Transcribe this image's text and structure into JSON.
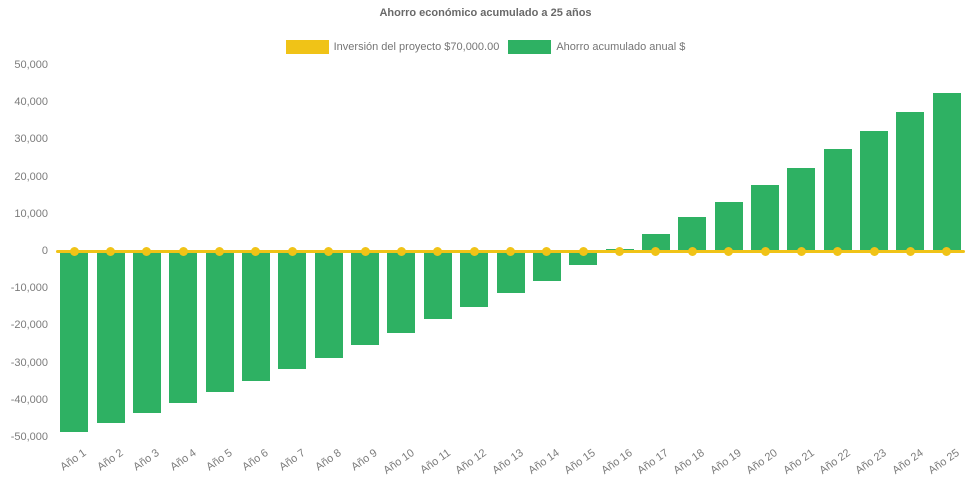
{
  "chart_data": {
    "type": "bar",
    "title": "Ahorro económico acumulado a 25 años",
    "xlabel": "",
    "ylabel": "",
    "ylim": [
      -50000,
      50000
    ],
    "ytick_step": 10000,
    "grid": false,
    "legend_position": "top",
    "background_color": "#ffffff",
    "text_color": "#7c7c7c",
    "categories": [
      "Año 1",
      "Año 2",
      "Año 3",
      "Año 4",
      "Año 5",
      "Año 6",
      "Año 7",
      "Año 8",
      "Año 9",
      "Año 10",
      "Año 11",
      "Año 12",
      "Año 13",
      "Año 14",
      "Año 15",
      "Año 16",
      "Año 17",
      "Año 18",
      "Año 19",
      "Año 20",
      "Año 21",
      "Año 22",
      "Año 23",
      "Año 24",
      "Año 25"
    ],
    "series": [
      {
        "key": "inversion",
        "name": "Inversión del proyecto $70,000.00",
        "type": "line",
        "color": "#F0C317",
        "values": [
          0,
          0,
          0,
          0,
          0,
          0,
          0,
          0,
          0,
          0,
          0,
          0,
          0,
          0,
          0,
          0,
          0,
          0,
          0,
          0,
          0,
          0,
          0,
          0,
          0
        ]
      },
      {
        "key": "ahorro",
        "name": "Ahorro acumulado anual $",
        "type": "bar",
        "color": "#2EB163",
        "values": [
          -48600,
          -46000,
          -43400,
          -40700,
          -37700,
          -34700,
          -31700,
          -28500,
          -25000,
          -22000,
          -18200,
          -15000,
          -11200,
          -7800,
          -3600,
          800,
          4600,
          9200,
          13400,
          17800,
          22500,
          27500,
          32300,
          37400,
          42600
        ]
      }
    ]
  }
}
